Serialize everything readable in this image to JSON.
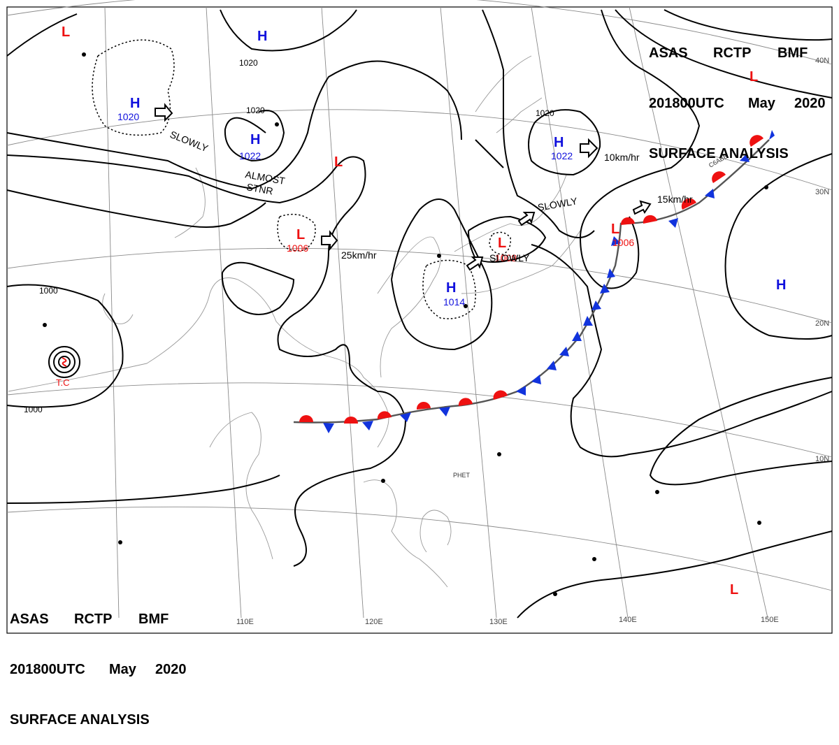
{
  "header": {
    "agency_1": "ASAS",
    "agency_2": "RCTP",
    "agency_3": "BMF",
    "time": "201800UTC",
    "month": "May",
    "year": "2020",
    "product": "SURFACE ANALYSIS"
  },
  "lon_labels": [
    "110E",
    "120E",
    "130E",
    "140E",
    "150E"
  ],
  "lat_labels": [
    "40N",
    "30N",
    "20N",
    "10N"
  ],
  "pressure_systems": [
    {
      "type": "L",
      "value": ""
    },
    {
      "type": "H",
      "value": ""
    },
    {
      "type": "H",
      "value": "1020"
    },
    {
      "type": "H",
      "value": "1022"
    },
    {
      "type": "L",
      "value": ""
    },
    {
      "type": "L",
      "value": "1006"
    },
    {
      "type": "H",
      "value": "1014"
    },
    {
      "type": "L",
      "value": "1008"
    },
    {
      "type": "H",
      "value": "1022"
    },
    {
      "type": "L",
      "value": "1006"
    },
    {
      "type": "L",
      "value": ""
    },
    {
      "type": "H",
      "value": ""
    },
    {
      "type": "L",
      "value": ""
    }
  ],
  "isobar_labels": [
    "1020",
    "1020",
    "1020",
    "1000",
    "1000"
  ],
  "motion_labels": [
    "SLOWLY",
    "ALMOST",
    "STNR",
    "25km/hr",
    "SLOWLY",
    "SLOWLY",
    "10km/hr",
    "15km/hr"
  ],
  "tc_label": "T.C",
  "station_labels": [
    "PHET",
    "C6ABB"
  ],
  "colors": {
    "low": "#ee1111",
    "high": "#1111dd",
    "warm_front": "#ee1111",
    "cold_front": "#1133dd",
    "isobar": "#000000",
    "grid": "#888888"
  }
}
